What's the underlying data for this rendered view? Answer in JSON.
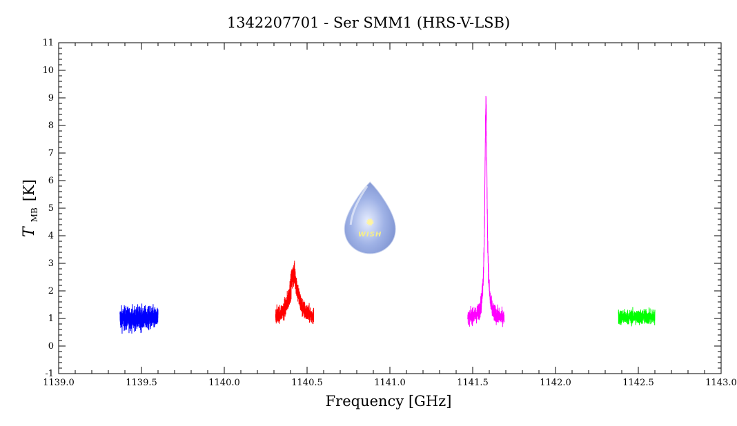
{
  "chart_data": {
    "type": "line",
    "title": "1342207701 - Ser SMM1 (HRS-V-LSB)",
    "xlabel": "Frequency [GHz]",
    "ylabel_symbol": "T",
    "ylabel_subscript": "MB",
    "ylabel_unit": "[K]",
    "xlim": [
      1139.0,
      1143.0
    ],
    "ylim": [
      -1,
      11
    ],
    "x_ticks": [
      "1139.0",
      "1139.5",
      "1140.0",
      "1140.5",
      "1141.0",
      "1141.5",
      "1142.0",
      "1142.5",
      "1143.0"
    ],
    "y_ticks": [
      "-1",
      "0",
      "1",
      "2",
      "3",
      "4",
      "5",
      "6",
      "7",
      "8",
      "9",
      "10",
      "11"
    ],
    "grid": false,
    "series": [
      {
        "color": "#0000ff",
        "x_range": [
          1139.37,
          1139.6
        ],
        "baseline": 1.0,
        "noise": 0.55,
        "peak": null
      },
      {
        "color": "#ff0000",
        "x_range": [
          1140.31,
          1140.54
        ],
        "baseline": 1.0,
        "noise": 0.35,
        "peak": {
          "center": 1140.42,
          "height": 1.6,
          "width": 0.03
        }
      },
      {
        "color": "#ff00ff",
        "x_range": [
          1141.47,
          1141.69
        ],
        "baseline": 1.0,
        "noise": 0.3,
        "peak": {
          "center": 1141.58,
          "height": 7.9,
          "width": 0.008
        }
      },
      {
        "color": "#00ff00",
        "x_range": [
          1142.38,
          1142.6
        ],
        "baseline": 1.05,
        "noise": 0.35,
        "peak": null
      }
    ],
    "watermark": {
      "text": "WISH",
      "x": 1140.88,
      "y": 4.4
    }
  }
}
